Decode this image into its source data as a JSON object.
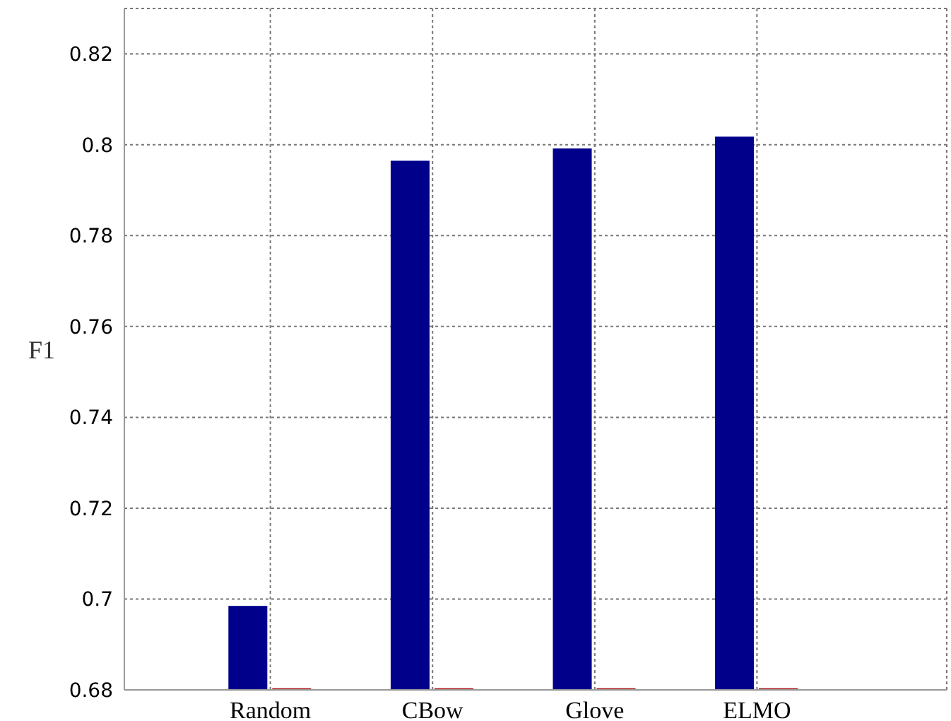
{
  "chart_data": {
    "type": "bar",
    "ylabel": "F1",
    "categories": [
      "Random",
      "CBow",
      "Glove",
      "ELMO"
    ],
    "series": [
      {
        "color": "#00008b",
        "values": [
          0.6984,
          0.7964,
          0.7991,
          0.8017
        ]
      },
      {
        "color": "#b22222",
        "values": [
          0.68,
          0.68,
          0.68,
          0.68
        ]
      }
    ],
    "ylim": [
      0.68,
      0.83
    ],
    "yticks": [
      0.68,
      0.7,
      0.72,
      0.74,
      0.76,
      0.78,
      0.8,
      0.82
    ],
    "grid": true,
    "legend": false
  }
}
